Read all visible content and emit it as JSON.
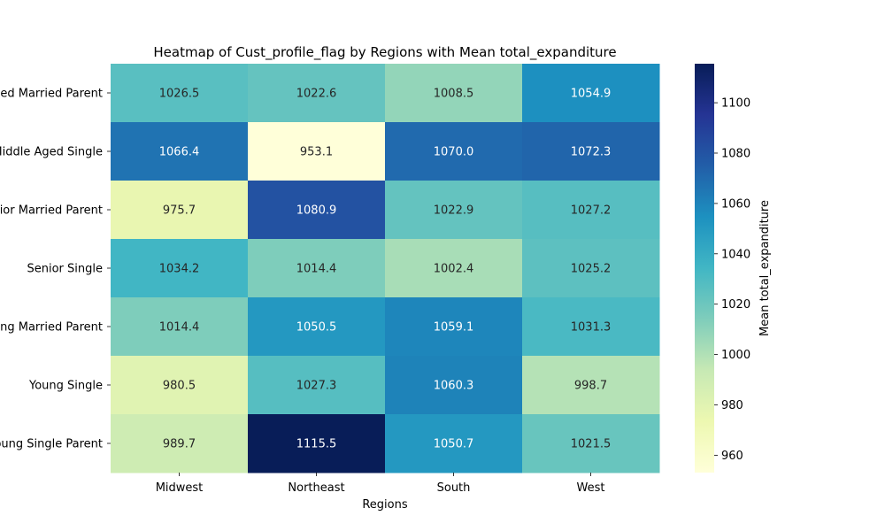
{
  "chart_data": {
    "type": "heatmap",
    "title": "Heatmap of Cust_profile_flag by Regions with Mean total_expanditure",
    "xlabel": "Regions",
    "ylabel": "",
    "colorbar_label": "Mean total_expanditure",
    "x_categories": [
      "Midwest",
      "Northeast",
      "South",
      "West"
    ],
    "y_categories": [
      "Middle Aged Married Parent",
      "Middle Aged Single",
      "Senior Married Parent",
      "Senior Single",
      "Young Married Parent",
      "Young Single",
      "Young Single Parent"
    ],
    "values": [
      [
        1026.5,
        1022.6,
        1008.5,
        1054.9
      ],
      [
        1066.4,
        953.1,
        1070.0,
        1072.3
      ],
      [
        975.7,
        1080.9,
        1022.9,
        1027.2
      ],
      [
        1034.2,
        1014.4,
        1002.4,
        1025.2
      ],
      [
        1014.4,
        1050.5,
        1059.1,
        1031.3
      ],
      [
        980.5,
        1027.3,
        1060.3,
        998.7
      ],
      [
        989.7,
        1115.5,
        1050.7,
        1021.5
      ]
    ],
    "value_labels": [
      [
        "1026.5",
        "1022.6",
        "1008.5",
        "1054.9"
      ],
      [
        "1066.4",
        "953.1",
        "1070.0",
        "1072.3"
      ],
      [
        "975.7",
        "1080.9",
        "1022.9",
        "1027.2"
      ],
      [
        "1034.2",
        "1014.4",
        "1002.4",
        "1025.2"
      ],
      [
        "1014.4",
        "1050.5",
        "1059.1",
        "1031.3"
      ],
      [
        "980.5",
        "1027.3",
        "1060.3",
        "998.7"
      ],
      [
        "989.7",
        "1115.5",
        "1050.7",
        "1021.5"
      ]
    ],
    "colorbar_range": [
      953.1,
      1115.5
    ],
    "colorbar_ticks": [
      960,
      980,
      1000,
      1020,
      1040,
      1060,
      1080,
      1100
    ],
    "colormap": [
      "#ffffd9",
      "#edf8b1",
      "#c7e9b4",
      "#7fcdbb",
      "#41b6c4",
      "#1d91c0",
      "#225ea8",
      "#253494",
      "#081d58"
    ],
    "grid": false,
    "legend": "colorbar-right"
  }
}
